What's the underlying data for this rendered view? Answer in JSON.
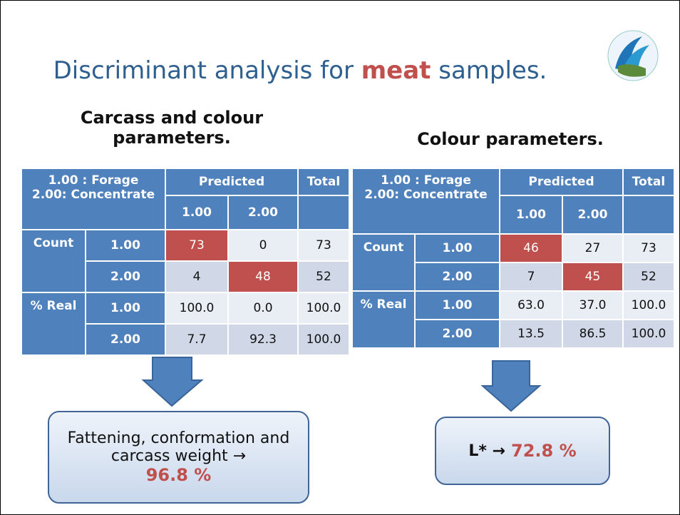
{
  "title": {
    "before": "Discriminant analysis for ",
    "highlight": "meat",
    "after": " samples."
  },
  "panels": [
    {
      "heading": "Carcass and colour parameters.",
      "table": {
        "corner": [
          "1.00 : Forage",
          "2.00: Concentrate"
        ],
        "predicted": "Predicted",
        "total": "Total",
        "classes": [
          "1.00",
          "2.00"
        ],
        "sections": [
          {
            "label": "Count",
            "rows": [
              {
                "class": "1.00",
                "cells": [
                  "73",
                  "0",
                  "73"
                ]
              },
              {
                "class": "2.00",
                "cells": [
                  "4",
                  "48",
                  "52"
                ]
              }
            ]
          },
          {
            "label": "% Real",
            "rows": [
              {
                "class": "1.00",
                "cells": [
                  "100.0",
                  "0.0",
                  "100.0"
                ]
              },
              {
                "class": "2.00",
                "cells": [
                  "7.7",
                  "92.3",
                  "100.0"
                ]
              }
            ]
          }
        ]
      },
      "result": {
        "text": "Fattening, conformation and carcass weight →",
        "value": "96.8 %"
      }
    },
    {
      "heading": "Colour parameters.",
      "table": {
        "corner": [
          "1.00 : Forage",
          "2.00: Concentrate"
        ],
        "predicted": "Predicted",
        "total": "Total",
        "classes": [
          "1.00",
          "2.00"
        ],
        "sections": [
          {
            "label": "Count",
            "rows": [
              {
                "class": "1.00",
                "cells": [
                  "46",
                  "27",
                  "73"
                ]
              },
              {
                "class": "2.00",
                "cells": [
                  "7",
                  "45",
                  "52"
                ]
              }
            ]
          },
          {
            "label": "% Real",
            "rows": [
              {
                "class": "1.00",
                "cells": [
                  "63.0",
                  "37.0",
                  "100.0"
                ]
              },
              {
                "class": "2.00",
                "cells": [
                  "13.5",
                  "86.5",
                  "100.0"
                ]
              }
            ]
          }
        ]
      },
      "result": {
        "text": "L* →",
        "value": "72.8 %"
      }
    }
  ]
}
